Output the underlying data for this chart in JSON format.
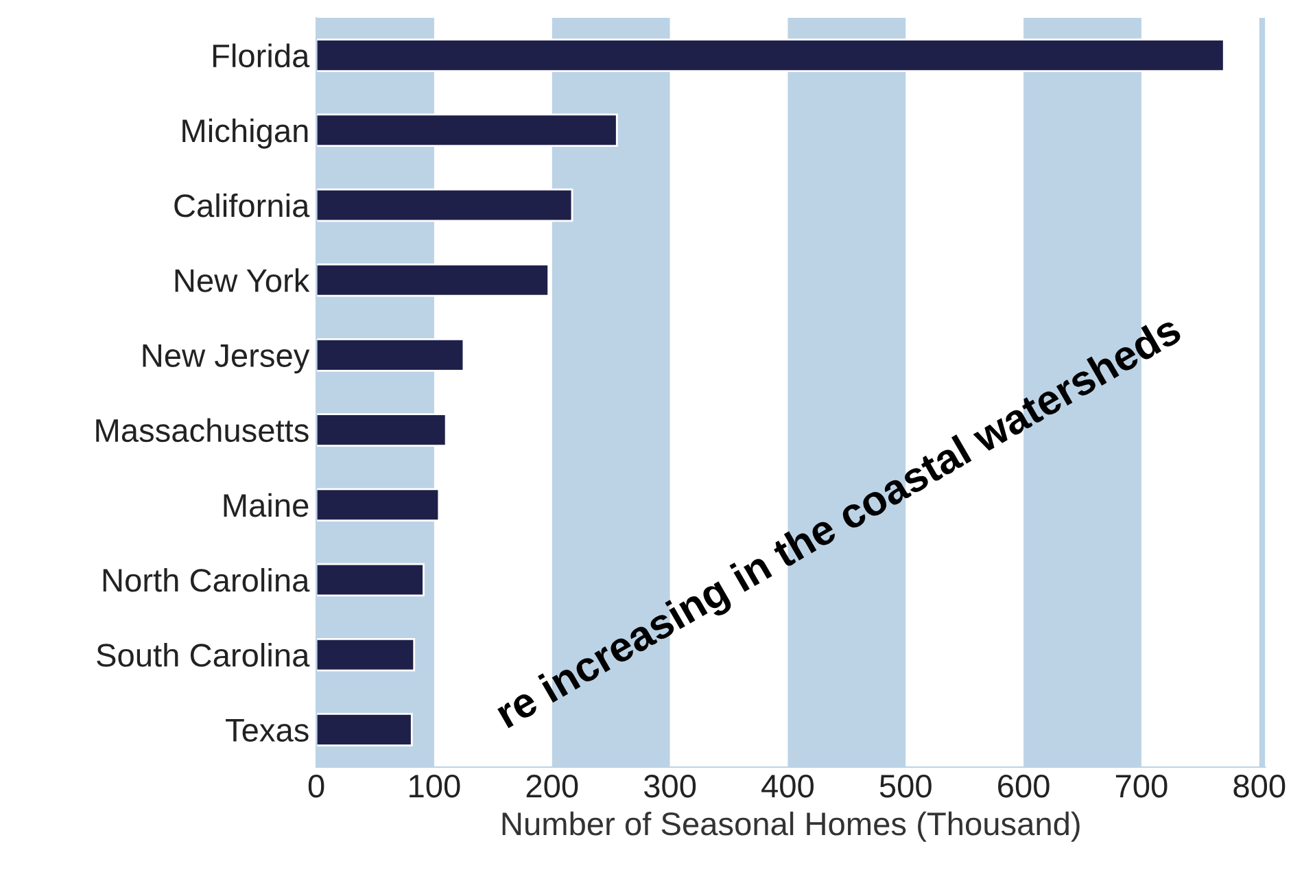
{
  "chart_data": {
    "type": "bar",
    "orientation": "horizontal",
    "xlabel": "Number of Seasonal Homes (Thousand)",
    "categories": [
      "Florida",
      "Michigan",
      "California",
      "New York",
      "New Jersey",
      "Massachusetts",
      "Maine",
      "North Carolina",
      "South Carolina",
      "Texas"
    ],
    "values": [
      770,
      255,
      217,
      197,
      125,
      110,
      104,
      91,
      83,
      81
    ],
    "color": "#1f2049",
    "xlim": [
      0,
      805
    ],
    "xticks": [
      0,
      100,
      200,
      300,
      400,
      500,
      600,
      700,
      800
    ],
    "bands": [
      {
        "axis": "x",
        "from": 0,
        "to": 100,
        "color": "#bcd3e6"
      },
      {
        "axis": "x",
        "from": 200,
        "to": 300,
        "color": "#bcd3e6"
      },
      {
        "axis": "x",
        "from": 400,
        "to": 500,
        "color": "#bcd3e6"
      },
      {
        "axis": "x",
        "from": 600,
        "to": 700,
        "color": "#bcd3e6"
      },
      {
        "axis": "x",
        "from": 800,
        "to": 805,
        "color": "#bcd3e6"
      }
    ],
    "annotations": [
      "re increasing in the coastal watersheds"
    ],
    "grid": false,
    "legend": false
  }
}
